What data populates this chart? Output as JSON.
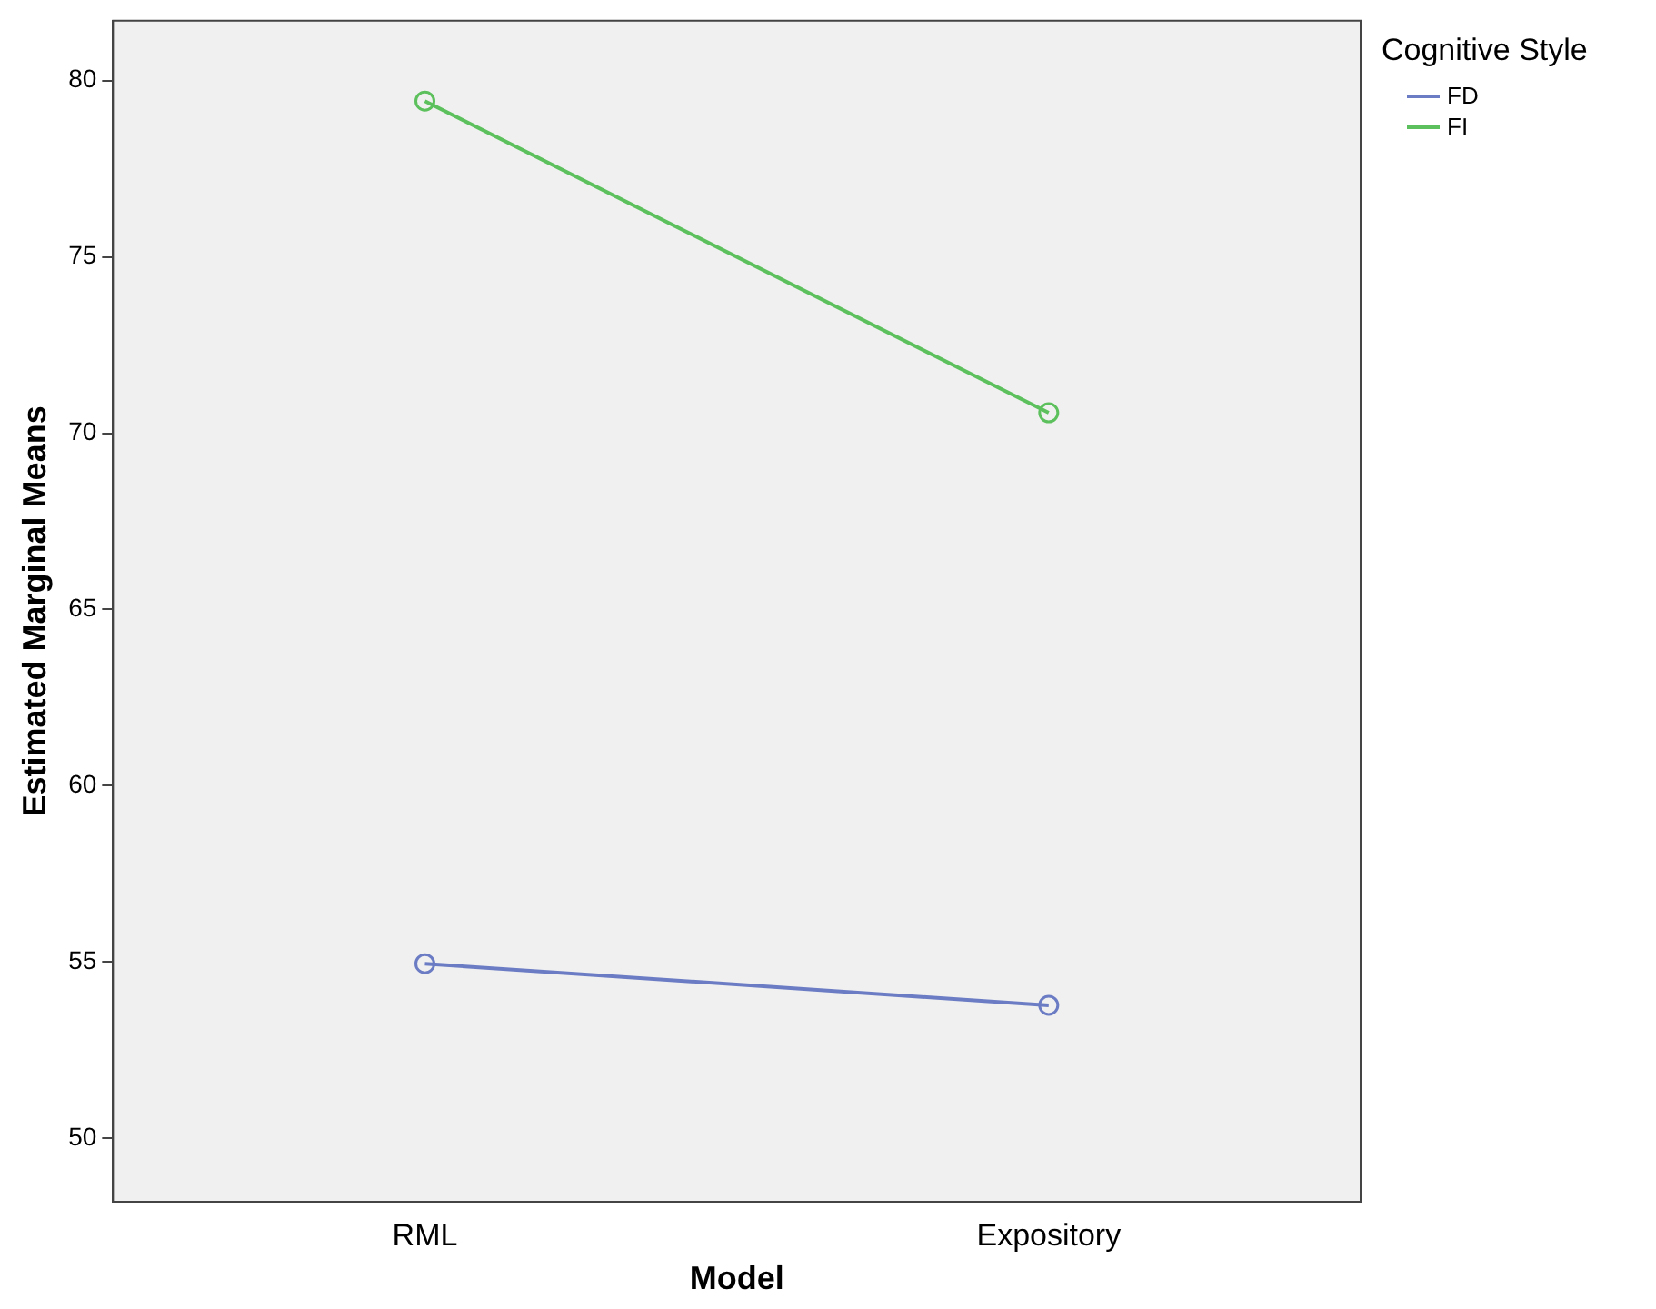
{
  "chart_data": {
    "type": "line",
    "xlabel": "Model",
    "ylabel": "Estimated Marginal Means",
    "legend_title": "Cognitive Style",
    "categories": [
      "RML",
      "Expository"
    ],
    "series": [
      {
        "name": "FD",
        "color": "#6b7cc4",
        "values": [
          54.95,
          53.77
        ]
      },
      {
        "name": "FI",
        "color": "#5cc15c",
        "values": [
          79.42,
          70.58
        ]
      }
    ],
    "ylim": [
      48.2,
      81.7
    ],
    "yticks": [
      50,
      55,
      60,
      65,
      70,
      75,
      80
    ],
    "grid": false,
    "legend": "top right",
    "marker": "circle",
    "line_style": "solid"
  }
}
